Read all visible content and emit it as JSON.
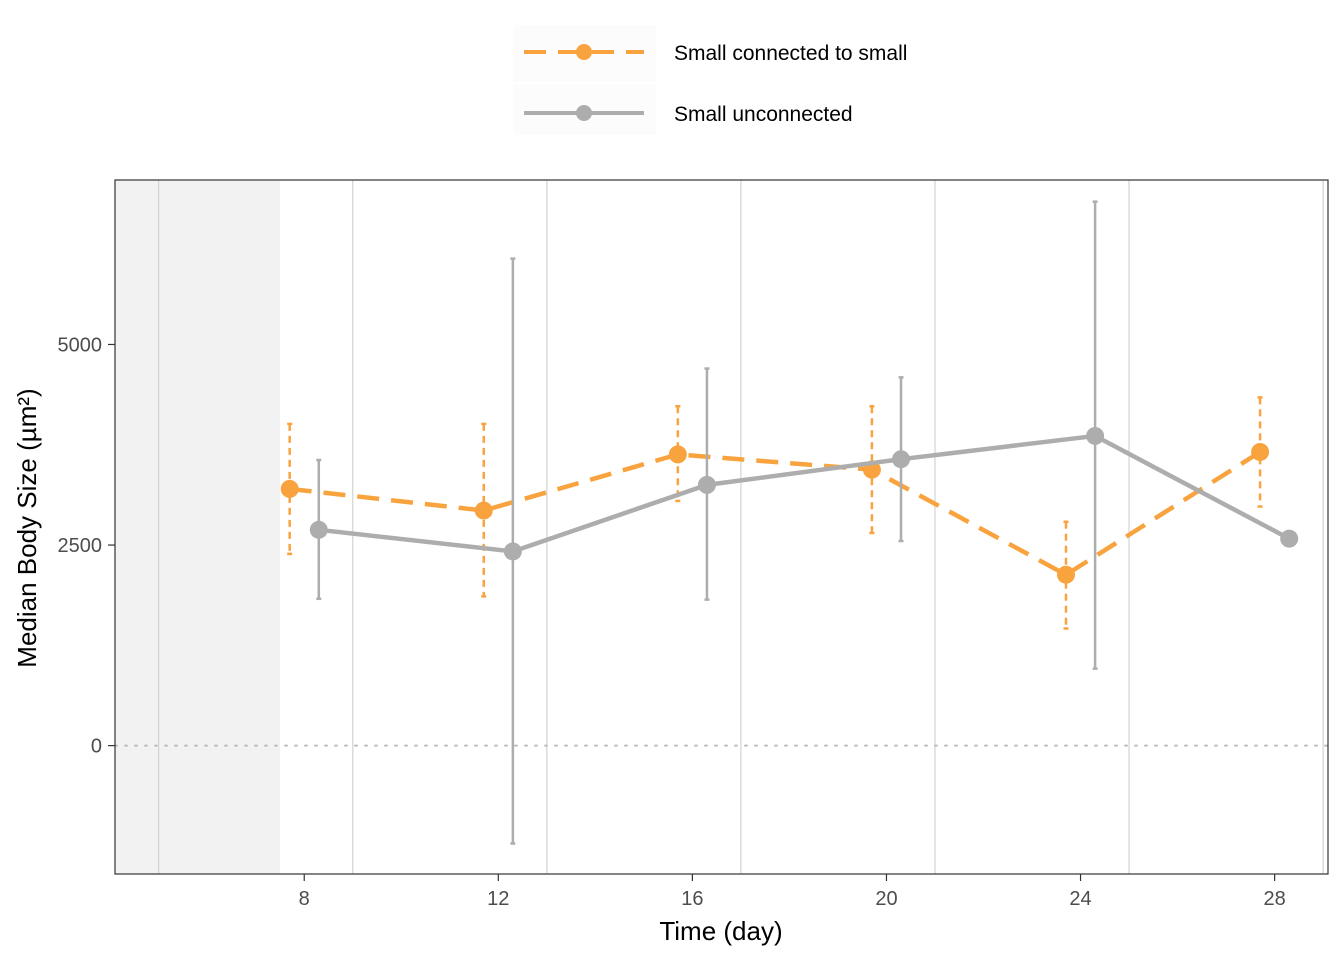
{
  "chart_data": {
    "type": "line",
    "title": "",
    "xlabel": "Time (day)",
    "ylabel": "Median Body Size (µm²)",
    "x_ticks": [
      8,
      12,
      16,
      20,
      24,
      28
    ],
    "y_ticks": [
      0,
      2500,
      5000
    ],
    "xlim": [
      4.1,
      29.1
    ],
    "ylim": [
      -1600,
      7050
    ],
    "grid": "vertical",
    "reference_line_y": 0,
    "shaded_region_x": [
      4.1,
      7.5
    ],
    "legend_position": "top",
    "colors": {
      "Small connected to small": "#F9A33F",
      "Small unconnected": "#ADADAD"
    },
    "series": [
      {
        "name": "Small connected to small",
        "style": "dashed",
        "color": "#F9A33F",
        "x": [
          8,
          12,
          16,
          20,
          24,
          28
        ],
        "y": [
          3200,
          2930,
          3630,
          3440,
          2130,
          3660
        ],
        "err_low": [
          2390,
          1860,
          3050,
          2650,
          1460,
          2980
        ],
        "err_high": [
          4010,
          4010,
          4230,
          4230,
          2790,
          4340
        ]
      },
      {
        "name": "Small unconnected",
        "style": "solid",
        "color": "#ADADAD",
        "x": [
          8,
          12,
          16,
          20,
          24,
          28
        ],
        "y": [
          2690,
          2420,
          3250,
          3570,
          3860,
          2580
        ],
        "err_low": [
          1830,
          -1220,
          1820,
          2550,
          960,
          null
        ],
        "err_high": [
          3560,
          6070,
          4700,
          4590,
          6780,
          null
        ]
      }
    ]
  }
}
